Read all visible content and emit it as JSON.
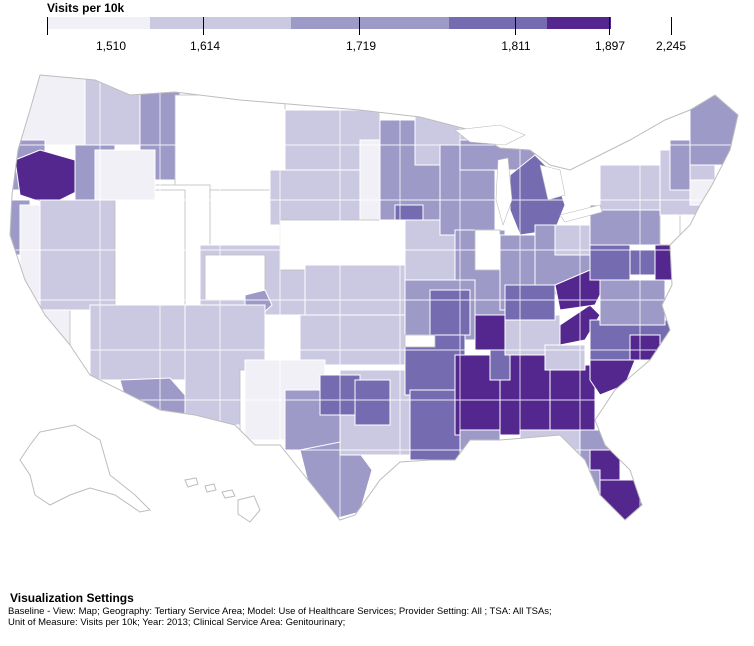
{
  "legend": {
    "title": "Visits per 10k",
    "breaks": [
      "1,510",
      "1,614",
      "1,719",
      "1,811",
      "1,897",
      "2,245"
    ],
    "break_values": [
      1510,
      1614,
      1719,
      1811,
      1897,
      2245
    ],
    "colors": [
      "#f2f0f7",
      "#cbc9e2",
      "#9e9ac8",
      "#756bb1",
      "#54278f"
    ]
  },
  "map": {
    "region": "United States (contiguous, Alaska, Hawaii)",
    "geography": "Tertiary Service Area",
    "border_color": "#ffffff",
    "no_data_color": "#ffffff",
    "outline_color": "#bdbdbd",
    "regions": [
      {
        "name": "oregon-southwest",
        "class": 5
      },
      {
        "name": "oregon-northwest",
        "class": 3
      },
      {
        "name": "oregon-east",
        "class": 3
      },
      {
        "name": "california-north-coast",
        "class": 3
      },
      {
        "name": "california-interior",
        "class": 0
      },
      {
        "name": "washington-west",
        "class": 1
      },
      {
        "name": "washington-east",
        "class": 1
      },
      {
        "name": "idaho-panhandle",
        "class": 3
      },
      {
        "name": "nevada",
        "class": 2
      },
      {
        "name": "utah",
        "class": 0
      },
      {
        "name": "arizona",
        "class": 2
      },
      {
        "name": "arizona-southwest",
        "class": 3
      },
      {
        "name": "colorado",
        "class": 1
      },
      {
        "name": "wyoming",
        "class": 0
      },
      {
        "name": "montana",
        "class": 0
      },
      {
        "name": "north-dakota",
        "class": 1
      },
      {
        "name": "south-dakota",
        "class": 1
      },
      {
        "name": "minnesota",
        "class": 2
      },
      {
        "name": "nebraska",
        "class": 0
      },
      {
        "name": "kansas",
        "class": 1
      },
      {
        "name": "oklahoma",
        "class": 1
      },
      {
        "name": "texas-west",
        "class": 1
      },
      {
        "name": "texas-central",
        "class": 3
      },
      {
        "name": "texas-east",
        "class": 3
      },
      {
        "name": "iowa",
        "class": 1
      },
      {
        "name": "missouri",
        "class": 2
      },
      {
        "name": "arkansas",
        "class": 3
      },
      {
        "name": "louisiana",
        "class": 3
      },
      {
        "name": "mississippi",
        "class": 5
      },
      {
        "name": "alabama",
        "class": 5
      },
      {
        "name": "georgia",
        "class": 5
      },
      {
        "name": "tennessee-west",
        "class": 5
      },
      {
        "name": "tennessee-east",
        "class": 5
      },
      {
        "name": "kentucky-east",
        "class": 5
      },
      {
        "name": "kentucky-west",
        "class": 3
      },
      {
        "name": "illinois",
        "class": 2
      },
      {
        "name": "wisconsin",
        "class": 2
      },
      {
        "name": "michigan-lower",
        "class": 3
      },
      {
        "name": "michigan-upper",
        "class": 2
      },
      {
        "name": "indiana",
        "class": 3
      },
      {
        "name": "ohio",
        "class": 3
      },
      {
        "name": "west-virginia",
        "class": 3
      },
      {
        "name": "virginia",
        "class": 3
      },
      {
        "name": "north-carolina",
        "class": 4
      },
      {
        "name": "south-carolina",
        "class": 5
      },
      {
        "name": "florida-north",
        "class": 3
      },
      {
        "name": "florida-south",
        "class": 5
      },
      {
        "name": "pennsylvania",
        "class": 2
      },
      {
        "name": "new-jersey",
        "class": 5
      },
      {
        "name": "new-york",
        "class": 1
      },
      {
        "name": "new-england",
        "class": 1
      },
      {
        "name": "maine",
        "class": 2
      },
      {
        "name": "alaska",
        "class": 0
      },
      {
        "name": "hawaii",
        "class": 0
      }
    ]
  },
  "settings": {
    "title": "Visualization Settings",
    "line1": "Baseline - View: Map; Geography: Tertiary Service Area; Model: Use of Healthcare Services; Provider Setting: All ; TSA: All TSAs;",
    "line2": "Unit of Measure: Visits per 10k; Year: 2013; Clinical Service Area: Genitourinary;"
  }
}
